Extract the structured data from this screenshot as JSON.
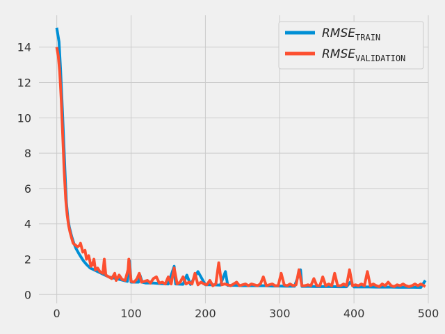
{
  "chart_data": {
    "type": "line",
    "title": "",
    "xlabel": "",
    "ylabel": "",
    "xlim": [
      -24,
      500
    ],
    "ylim": [
      -0.5,
      15.8
    ],
    "xticks": [
      0,
      100,
      200,
      300,
      400,
      500
    ],
    "yticks": [
      0,
      2,
      4,
      6,
      8,
      10,
      12,
      14
    ],
    "grid": true,
    "legend_position": "top-right",
    "series": [
      {
        "name": "RMSE_TRAIN",
        "label_main": "RMSE",
        "label_sub": "TRAIN",
        "color": "#008fd5",
        "x": [
          0,
          3,
          5,
          7,
          9,
          11,
          13,
          15,
          17,
          20,
          23,
          26,
          30,
          33,
          36,
          40,
          45,
          50,
          55,
          60,
          65,
          70,
          75,
          80,
          85,
          90,
          95,
          98,
          100,
          105,
          110,
          112,
          115,
          120,
          130,
          140,
          150,
          158,
          160,
          170,
          175,
          180,
          190,
          200,
          210,
          220,
          227,
          230,
          240,
          250,
          260,
          270,
          280,
          290,
          300,
          310,
          320,
          328,
          330,
          340,
          350,
          360,
          370,
          380,
          390,
          395,
          400,
          410,
          420,
          430,
          440,
          450,
          460,
          470,
          480,
          490,
          496
        ],
        "y": [
          15.1,
          14.3,
          12.8,
          11.0,
          9.0,
          7.0,
          5.2,
          4.3,
          3.8,
          3.3,
          2.9,
          2.6,
          2.3,
          2.1,
          1.9,
          1.7,
          1.5,
          1.4,
          1.3,
          1.2,
          1.1,
          1.0,
          0.95,
          0.9,
          0.85,
          0.8,
          0.75,
          1.9,
          0.7,
          0.7,
          0.7,
          1.1,
          0.7,
          0.65,
          0.65,
          0.62,
          0.6,
          1.6,
          0.6,
          0.58,
          1.1,
          0.57,
          1.3,
          0.55,
          0.55,
          0.53,
          1.3,
          0.52,
          0.52,
          0.5,
          0.5,
          0.5,
          0.5,
          0.48,
          0.48,
          0.47,
          0.47,
          1.4,
          0.46,
          0.46,
          0.45,
          0.45,
          0.45,
          0.44,
          0.44,
          0.7,
          0.43,
          0.43,
          0.43,
          0.42,
          0.42,
          0.42,
          0.41,
          0.41,
          0.41,
          0.4,
          0.8
        ]
      },
      {
        "name": "RMSE_VALIDATION",
        "label_main": "RMSE",
        "label_sub": "VALIDATION",
        "color": "#fc4f30",
        "x": [
          0,
          2,
          4,
          6,
          8,
          10,
          12,
          14,
          16,
          18,
          20,
          22,
          25,
          28,
          31,
          32,
          35,
          38,
          40,
          43,
          46,
          48,
          50,
          52,
          55,
          58,
          62,
          64,
          66,
          70,
          74,
          78,
          80,
          84,
          88,
          92,
          96,
          97,
          100,
          104,
          108,
          111,
          114,
          118,
          122,
          126,
          130,
          134,
          138,
          142,
          146,
          150,
          154,
          158,
          162,
          166,
          170,
          174,
          178,
          182,
          186,
          190,
          194,
          198,
          202,
          206,
          210,
          214,
          218,
          222,
          226,
          230,
          234,
          238,
          242,
          246,
          250,
          254,
          258,
          262,
          266,
          270,
          274,
          278,
          282,
          286,
          290,
          294,
          298,
          302,
          306,
          310,
          314,
          318,
          322,
          326,
          330,
          334,
          338,
          342,
          346,
          350,
          354,
          358,
          362,
          366,
          370,
          374,
          378,
          382,
          386,
          390,
          394,
          398,
          402,
          406,
          410,
          414,
          418,
          422,
          426,
          430,
          434,
          438,
          442,
          446,
          450,
          454,
          458,
          462,
          466,
          470,
          474,
          478,
          482,
          486,
          490,
          494,
          496
        ],
        "y": [
          14.0,
          13.5,
          12.6,
          11.0,
          9.0,
          7.0,
          5.4,
          4.5,
          3.9,
          3.5,
          3.2,
          2.9,
          2.8,
          2.7,
          2.8,
          2.9,
          2.4,
          2.5,
          2.0,
          2.2,
          1.6,
          1.7,
          2.0,
          1.4,
          1.5,
          1.3,
          1.2,
          2.0,
          1.1,
          1.0,
          0.9,
          1.2,
          0.8,
          1.1,
          0.85,
          0.8,
          1.4,
          2.0,
          0.75,
          0.7,
          0.9,
          1.2,
          0.7,
          0.75,
          0.8,
          0.65,
          0.9,
          1.0,
          0.65,
          0.7,
          0.6,
          1.0,
          0.6,
          1.5,
          0.6,
          0.7,
          1.0,
          0.6,
          0.7,
          0.6,
          1.2,
          0.55,
          0.7,
          0.6,
          0.55,
          0.8,
          0.5,
          0.6,
          1.8,
          0.55,
          0.6,
          0.55,
          0.5,
          0.6,
          0.7,
          0.5,
          0.55,
          0.6,
          0.5,
          0.6,
          0.55,
          0.5,
          0.6,
          1.0,
          0.5,
          0.55,
          0.6,
          0.5,
          0.5,
          1.2,
          0.55,
          0.5,
          0.6,
          0.5,
          0.55,
          1.4,
          0.5,
          0.5,
          0.55,
          0.5,
          0.9,
          0.5,
          0.5,
          1.0,
          0.5,
          0.6,
          0.5,
          1.2,
          0.5,
          0.5,
          0.6,
          0.5,
          1.4,
          0.5,
          0.55,
          0.5,
          0.6,
          0.5,
          1.3,
          0.5,
          0.6,
          0.5,
          0.45,
          0.6,
          0.5,
          0.7,
          0.5,
          0.45,
          0.55,
          0.5,
          0.6,
          0.5,
          0.45,
          0.5,
          0.6,
          0.5,
          0.6,
          0.5,
          0.45
        ]
      }
    ]
  }
}
